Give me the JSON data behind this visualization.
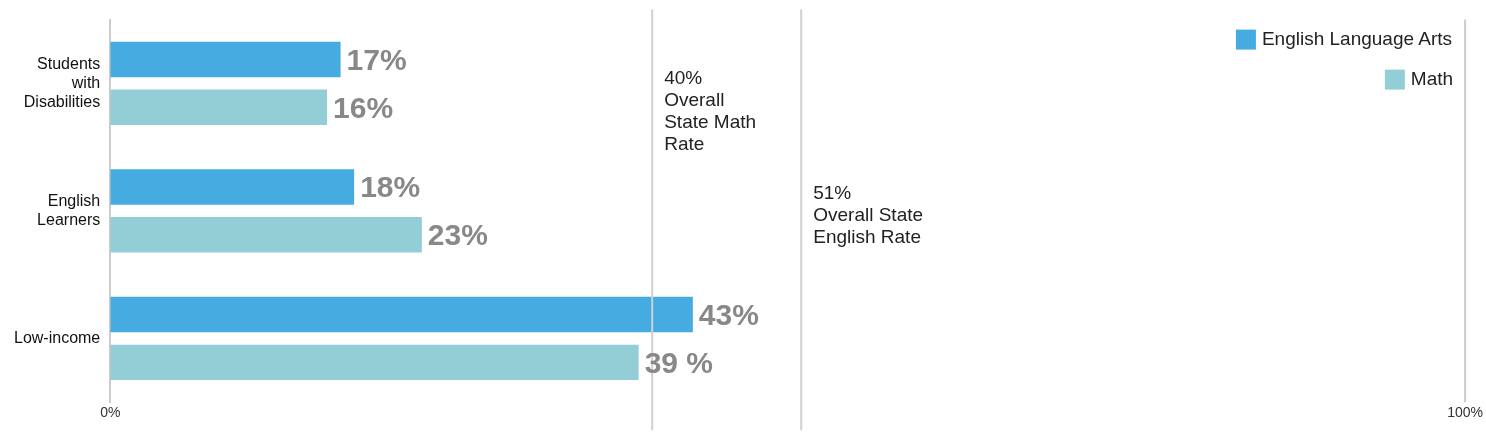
{
  "chart_data": {
    "type": "bar",
    "orientation": "horizontal",
    "categories": [
      "Students with Disabilities",
      "English Learners",
      "Low-income"
    ],
    "series": [
      {
        "name": "English Language Arts",
        "color": "#45abe0",
        "values": [
          17,
          18,
          43
        ],
        "value_labels": [
          "17%",
          "18%",
          "43%"
        ]
      },
      {
        "name": "Math",
        "color": "#93ced6",
        "values": [
          16,
          23,
          39
        ],
        "value_labels": [
          "16%",
          "23%",
          "39 %"
        ]
      }
    ],
    "xlim": [
      0,
      100
    ],
    "xticks": [
      {
        "value": 0,
        "label": "0%"
      },
      {
        "value": 100,
        "label": "100%"
      }
    ],
    "ref_lines": [
      {
        "axis": "x",
        "value": 40,
        "label": "40%\nOverall\nState Math\nRate",
        "color": "#d0d0d0"
      },
      {
        "axis": "x",
        "value": 51,
        "label": "51%\nOverall State\nEnglish Rate",
        "color": "#d0d0d0"
      }
    ],
    "grid": false,
    "legend": "top right"
  }
}
